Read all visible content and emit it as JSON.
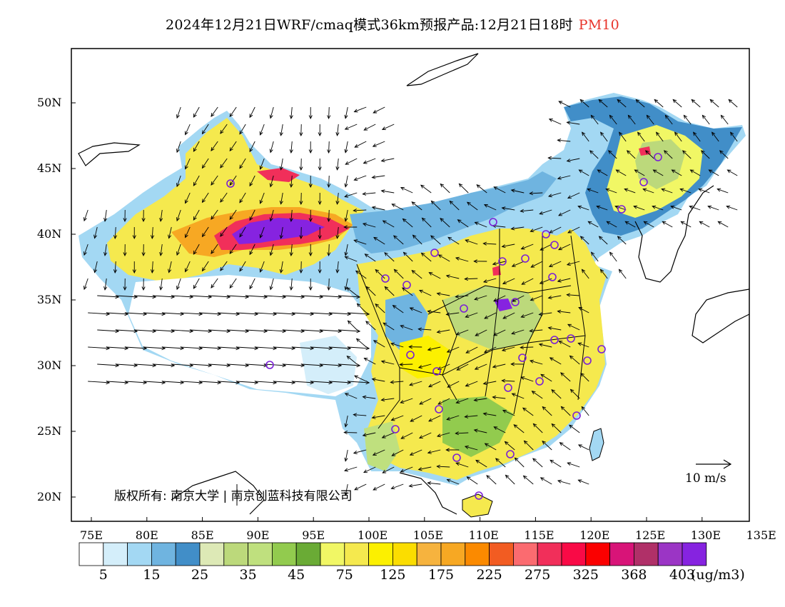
{
  "title": {
    "text": "2024年12月21日WRF/cmaq模式36km预报产品:12月21日18时",
    "pollutant": "PM10",
    "pollutant_color": "#e8332a"
  },
  "axes": {
    "x_ticks": [
      "75E",
      "80E",
      "85E",
      "90E",
      "95E",
      "100E",
      "105E",
      "110E",
      "115E",
      "120E",
      "125E",
      "130E",
      "135E"
    ],
    "y_ticks": [
      "50N",
      "45N",
      "40N",
      "35N",
      "30N",
      "25N",
      "20N"
    ]
  },
  "copyright": "版权所有: 南京大学 | 南京创蓝科技有限公司",
  "wind_reference": "10 m/s",
  "colorbar": {
    "colors": [
      "#ffffff",
      "#d4eefa",
      "#a3d8f3",
      "#6fb4e0",
      "#418ec8",
      "#dde9b6",
      "#bcd97b",
      "#bfe07e",
      "#92cb4e",
      "#6aab35",
      "#f1f765",
      "#f5e94e",
      "#fcf000",
      "#fbdd00",
      "#f6b33e",
      "#f7a823",
      "#fb8a00",
      "#f25c22",
      "#fb6b70",
      "#f12f5a",
      "#f90a46",
      "#fb0000",
      "#d81478",
      "#b03068",
      "#9b35c5",
      "#8623e0"
    ],
    "labels": [
      "5",
      "15",
      "25",
      "35",
      "45",
      "75",
      "125",
      "175",
      "225",
      "275",
      "325",
      "368",
      "403"
    ],
    "units": "(ug/m3)"
  }
}
